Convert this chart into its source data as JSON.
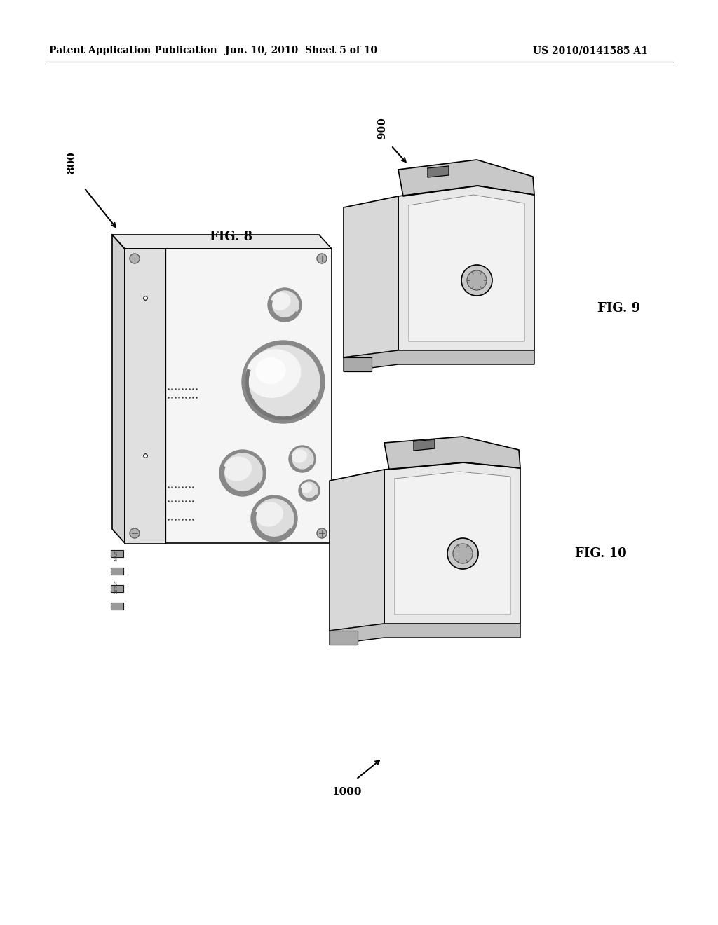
{
  "bg_color": "#ffffff",
  "header_left": "Patent Application Publication",
  "header_mid": "Jun. 10, 2010  Sheet 5 of 10",
  "header_right": "US 2010/0141585 A1",
  "fig8_label": "FIG. 8",
  "fig9_label": "FIG. 9",
  "fig10_label": "FIG. 10",
  "ref800": "800",
  "ref900": "900",
  "ref1000": "1000"
}
